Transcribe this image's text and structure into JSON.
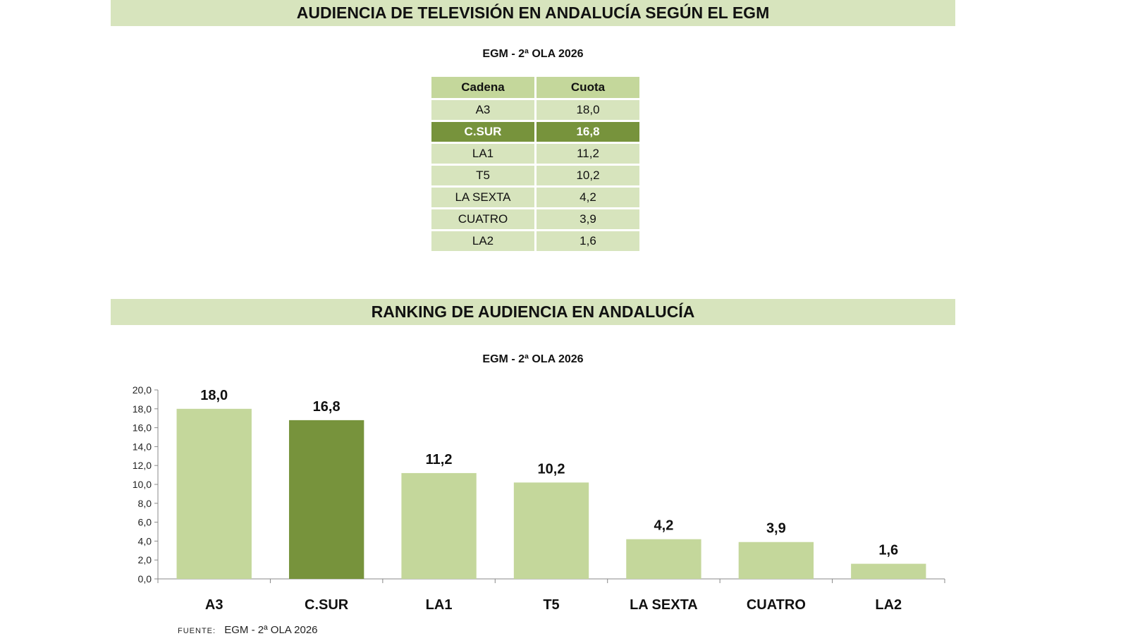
{
  "header": {
    "title": "AUDIENCIA DE TELEVISIÓN EN ANDALUCÍA SEGÚN EL EGM"
  },
  "table_section": {
    "subtitle": "EGM - 2ª OLA 2026",
    "col_headers": [
      "Cadena",
      "Cuota"
    ],
    "rows": [
      {
        "cadena": "A3",
        "cuota": "18,0"
      },
      {
        "cadena": "C.SUR",
        "cuota": "16,8"
      },
      {
        "cadena": "LA1",
        "cuota": "11,2"
      },
      {
        "cadena": "T5",
        "cuota": "10,2"
      },
      {
        "cadena": "LA SEXTA",
        "cuota": "4,2"
      },
      {
        "cadena": "CUATRO",
        "cuota": "3,9"
      },
      {
        "cadena": "LA2",
        "cuota": "1,6"
      }
    ],
    "highlight_row": 1
  },
  "ranking": {
    "title": "RANKING DE AUDIENCIA EN ANDALUCÍA"
  },
  "chart_data": {
    "type": "bar",
    "title": "EGM - 2ª OLA 2026",
    "categories": [
      "A3",
      "C.SUR",
      "LA1",
      "T5",
      "LA SEXTA",
      "CUATRO",
      "LA2"
    ],
    "values": [
      18.0,
      16.8,
      11.2,
      10.2,
      4.2,
      3.9,
      1.6
    ],
    "value_labels": [
      "18,0",
      "16,8",
      "11,2",
      "10,2",
      "4,2",
      "3,9",
      "1,6"
    ],
    "ylim": [
      0,
      20
    ],
    "yticks": [
      "0,0",
      "2,0",
      "4,0",
      "6,0",
      "8,0",
      "10,0",
      "12,0",
      "14,0",
      "16,0",
      "18,0",
      "20,0"
    ],
    "grid": false,
    "colors": {
      "default": "#c4d79b",
      "highlight": "#77933c"
    },
    "highlight_index": 1
  },
  "footer": {
    "label": "FUENTE:",
    "text": "EGM - 2ª OLA 2026"
  }
}
